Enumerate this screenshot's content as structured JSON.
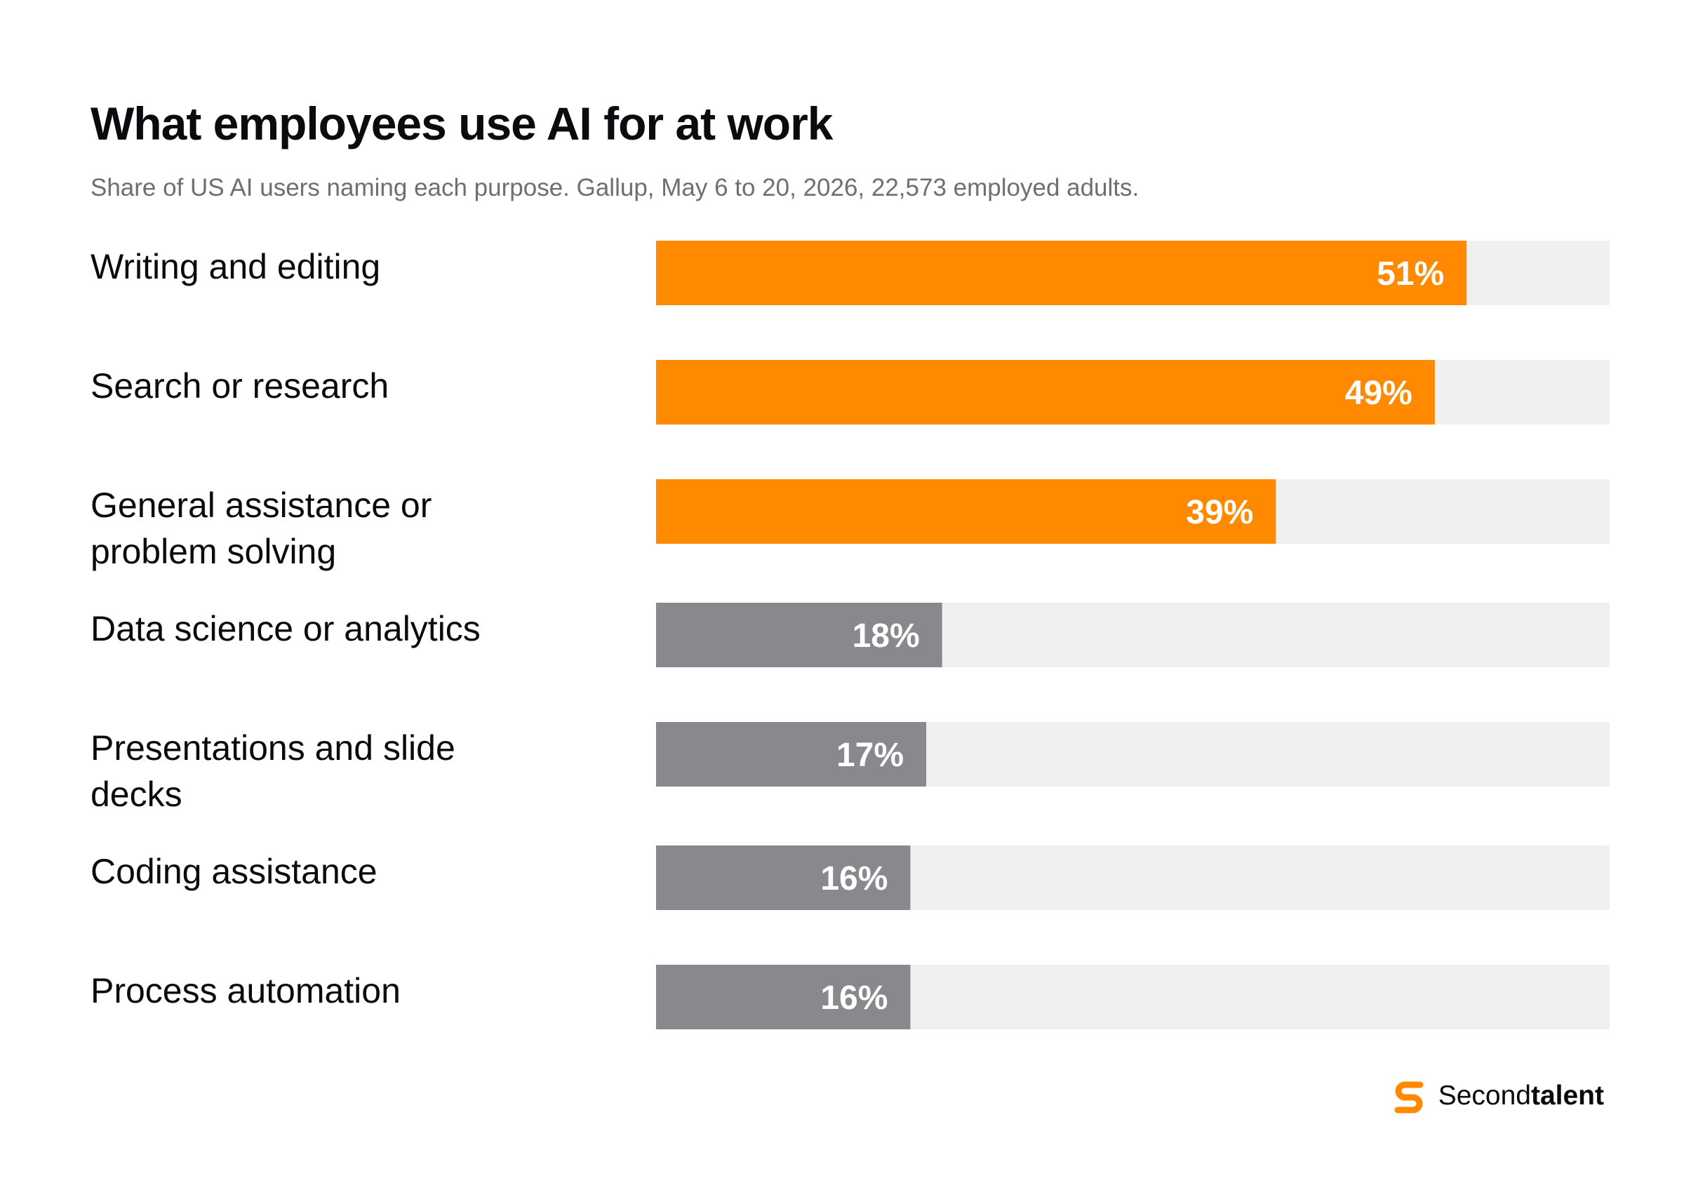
{
  "title": "What employees use AI for at work",
  "subtitle": "Share of US AI users naming each purpose. Gallup, May 6 to 20, 2026, 22,573 employed adults.",
  "brand": {
    "name_regular": "Second",
    "name_bold": "talent",
    "icon": "secondtalent-s-logo-icon"
  },
  "colors": {
    "highlight": "#ff8a00",
    "muted": "#88898d",
    "track": "#eff0ef",
    "label_text": "#ffffff"
  },
  "chart_data": {
    "type": "bar",
    "orientation": "horizontal",
    "categories": [
      "Writing and editing",
      "Search or research",
      "General assistance or problem solving",
      "Data science or analytics",
      "Presentations and slide decks",
      "Coding assistance",
      "Process automation"
    ],
    "category_lines": [
      [
        "Writing and editing"
      ],
      [
        "Search or research"
      ],
      [
        "General assistance or",
        "problem solving"
      ],
      [
        "Data science or analytics"
      ],
      [
        "Presentations and slide",
        "decks"
      ],
      [
        "Coding assistance"
      ],
      [
        "Process automation"
      ]
    ],
    "values": [
      51,
      49,
      39,
      18,
      17,
      16,
      16
    ],
    "value_labels": [
      "51%",
      "49%",
      "39%",
      "18%",
      "17%",
      "16%",
      "16%"
    ],
    "highlighted": [
      true,
      true,
      true,
      false,
      false,
      false,
      false
    ],
    "xlim": [
      0,
      60
    ],
    "grid": false,
    "legend": "none"
  }
}
